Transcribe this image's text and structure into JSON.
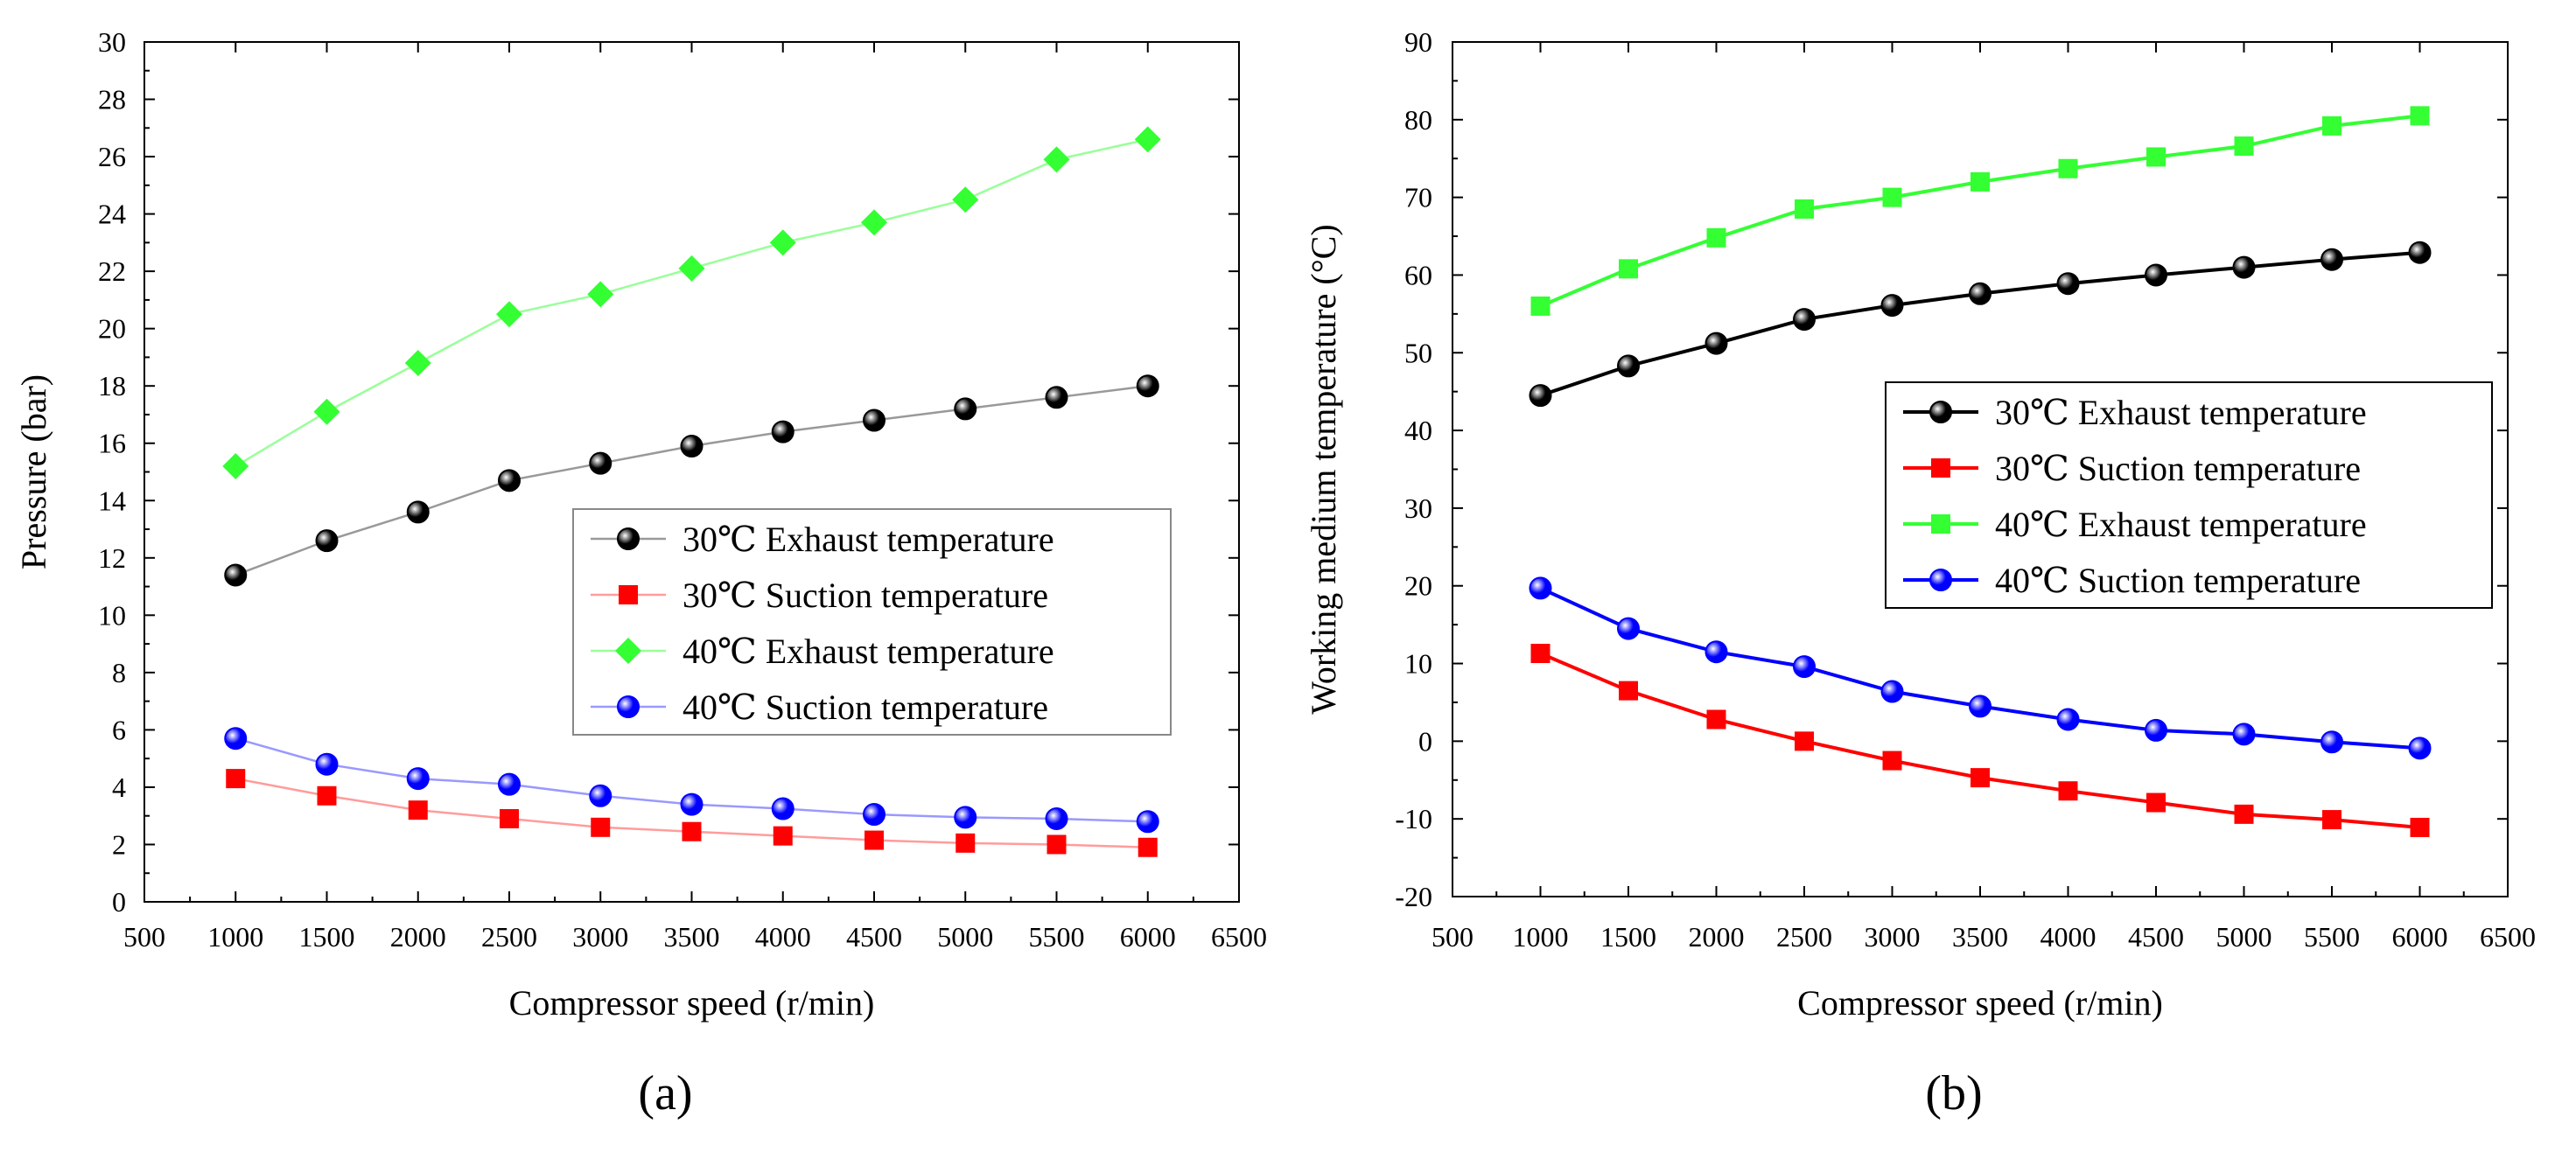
{
  "chart_data": [
    {
      "type": "line",
      "panel_label": "(a)",
      "xlabel": "Compressor speed (r/min)",
      "ylabel": "Pressure (bar)",
      "xlim": [
        500,
        6500
      ],
      "ylim": [
        0,
        30
      ],
      "xticks": [
        500,
        1000,
        1500,
        2000,
        2500,
        3000,
        3500,
        4000,
        4500,
        5000,
        5500,
        6000,
        6500
      ],
      "yticks": [
        0,
        2,
        4,
        6,
        8,
        10,
        12,
        14,
        16,
        18,
        20,
        22,
        24,
        26,
        28,
        30
      ],
      "grid": false,
      "legend_position": "center-right",
      "x": [
        1000,
        1500,
        2000,
        2500,
        3000,
        3500,
        4000,
        4500,
        5000,
        5500,
        6000
      ],
      "series": [
        {
          "name": "30℃ Exhaust temperature",
          "marker": "circle",
          "color": "#000000",
          "line_color": "#999999",
          "values": [
            11.4,
            12.6,
            13.6,
            14.7,
            15.3,
            15.9,
            16.4,
            16.8,
            17.2,
            17.6,
            18.0
          ]
        },
        {
          "name": "30℃ Suction temperature",
          "marker": "square",
          "color": "#ff0000",
          "line_color": "#ff9c9c",
          "values": [
            4.3,
            3.7,
            3.2,
            2.9,
            2.6,
            2.45,
            2.3,
            2.15,
            2.05,
            2.0,
            1.9
          ]
        },
        {
          "name": "40℃ Exhaust temperature",
          "marker": "diamond",
          "color": "#33ff33",
          "line_color": "#99ff99",
          "values": [
            15.2,
            17.1,
            18.8,
            20.5,
            21.2,
            22.1,
            23.0,
            23.7,
            24.5,
            25.9,
            26.6
          ]
        },
        {
          "name": "40℃ Suction temperature",
          "marker": "circle",
          "color": "#0000ff",
          "line_color": "#9999ff",
          "values": [
            5.7,
            4.8,
            4.3,
            4.1,
            3.7,
            3.4,
            3.25,
            3.05,
            2.95,
            2.9,
            2.8
          ]
        }
      ]
    },
    {
      "type": "line",
      "panel_label": "(b)",
      "xlabel": "Compressor speed (r/min)",
      "ylabel": "Working medium temperature (°C)",
      "xlim": [
        500,
        6500
      ],
      "ylim": [
        -20,
        90
      ],
      "xticks": [
        500,
        1000,
        1500,
        2000,
        2500,
        3000,
        3500,
        4000,
        4500,
        5000,
        5500,
        6000,
        6500
      ],
      "yticks": [
        -20,
        -10,
        0,
        10,
        20,
        30,
        40,
        50,
        60,
        70,
        80,
        90
      ],
      "grid": false,
      "legend_position": "center-right",
      "x": [
        1000,
        1500,
        2000,
        2500,
        3000,
        3500,
        4000,
        4500,
        5000,
        5500,
        6000
      ],
      "series": [
        {
          "name": "30℃ Exhaust temperature",
          "marker": "circle",
          "color": "#000000",
          "line_color": "#000000",
          "values": [
            44.5,
            48.3,
            51.2,
            54.3,
            56.1,
            57.6,
            58.9,
            60.0,
            61.0,
            62.0,
            62.9
          ]
        },
        {
          "name": "30℃ Suction temperature",
          "marker": "square",
          "color": "#ff0000",
          "line_color": "#ff0000",
          "values": [
            11.3,
            6.5,
            2.8,
            0.0,
            -2.5,
            -4.7,
            -6.4,
            -7.9,
            -9.4,
            -10.1,
            -11.1
          ]
        },
        {
          "name": "40℃ Exhaust temperature",
          "marker": "square",
          "color": "#33ff33",
          "line_color": "#33ff33",
          "values": [
            56.0,
            60.8,
            64.8,
            68.5,
            70.0,
            72.0,
            73.7,
            75.2,
            76.6,
            79.2,
            80.5
          ]
        },
        {
          "name": "40℃ Suction temperature",
          "marker": "circle",
          "color": "#0000ff",
          "line_color": "#0000ff",
          "values": [
            19.7,
            14.5,
            11.5,
            9.6,
            6.4,
            4.5,
            2.8,
            1.4,
            0.9,
            -0.1,
            -0.9
          ]
        }
      ]
    }
  ]
}
